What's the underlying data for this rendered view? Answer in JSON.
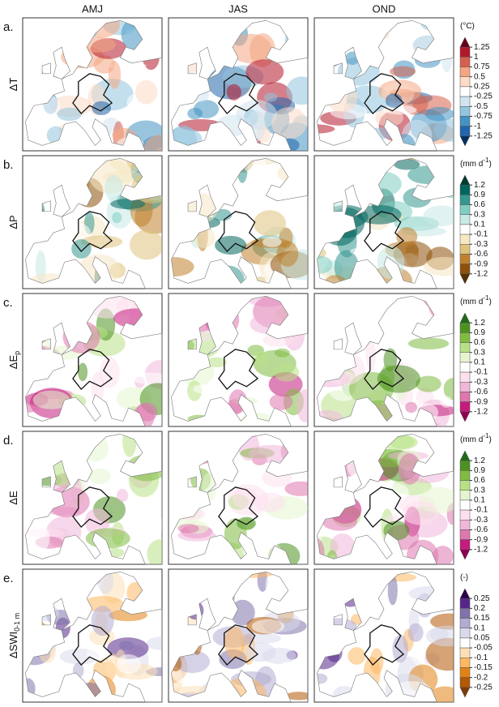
{
  "columns": [
    "AMJ",
    "JAS",
    "OND"
  ],
  "rows": [
    {
      "letter": "a.",
      "label": {
        "main": "ΔT"
      },
      "unit": {
        "text": "(°C)"
      },
      "ticks": [
        1.25,
        1,
        0.75,
        0.5,
        0.25,
        -0.25,
        -0.5,
        -0.75,
        -1,
        -1.25
      ],
      "colors": [
        "#67001f",
        "#b2182b",
        "#d6604d",
        "#f4a582",
        "#fddbc7",
        "#ffffff",
        "#d1e5f0",
        "#92c5de",
        "#4393c3",
        "#2166ac",
        "#053061"
      ]
    },
    {
      "letter": "b.",
      "label": {
        "main": "ΔP"
      },
      "unit": {
        "text": "(mm d",
        "sup": "-1",
        "end": ")"
      },
      "ticks": [
        1.2,
        0.9,
        0.6,
        0.3,
        0.1,
        -0.1,
        -0.3,
        -0.6,
        -0.9,
        -1.2
      ],
      "colors": [
        "#003c30",
        "#01665e",
        "#35978f",
        "#80cdc1",
        "#c7eae5",
        "#ffffff",
        "#f6e8c3",
        "#dfc27d",
        "#bf812d",
        "#8c510a",
        "#543005"
      ]
    },
    {
      "letter": "c.",
      "label": {
        "main": "ΔE",
        "sub": "p"
      },
      "unit": {
        "text": "(mm d",
        "sup": "-1",
        "end": ")"
      },
      "ticks": [
        1.2,
        0.9,
        0.6,
        0.3,
        0.1,
        -0.1,
        -0.3,
        -0.6,
        -0.9,
        -1.2
      ],
      "colors": [
        "#1f6b1a",
        "#4d9221",
        "#7fbc41",
        "#b8e186",
        "#e6f5d0",
        "#ffffff",
        "#fde0ef",
        "#f1b6da",
        "#de77ae",
        "#c51b7d",
        "#8e0152"
      ]
    },
    {
      "letter": "d.",
      "label": {
        "main": "ΔE"
      },
      "unit": {
        "text": "(mm d",
        "sup": "-1",
        "end": ")"
      },
      "ticks": [
        1.2,
        0.9,
        0.6,
        0.3,
        0.1,
        -0.1,
        -0.3,
        -0.6,
        -0.9,
        -1.2
      ],
      "colors": [
        "#1f6b1a",
        "#4d9221",
        "#7fbc41",
        "#b8e186",
        "#e6f5d0",
        "#ffffff",
        "#fde0ef",
        "#f1b6da",
        "#de77ae",
        "#c51b7d",
        "#8e0152"
      ]
    },
    {
      "letter": "e.",
      "label": {
        "main": "ΔSWI",
        "sub": "0-1 m"
      },
      "unit": {
        "text": "(-)"
      },
      "ticks": [
        0.25,
        0.2,
        0.15,
        0.1,
        0.05,
        -0.05,
        -0.1,
        -0.15,
        -0.2,
        -0.25
      ],
      "colors": [
        "#2d004b",
        "#542788",
        "#8073ac",
        "#b2abd2",
        "#d8daeb",
        "#ffffff",
        "#fee0b6",
        "#fdb863",
        "#e08214",
        "#b35806",
        "#7f3b08"
      ]
    }
  ]
}
